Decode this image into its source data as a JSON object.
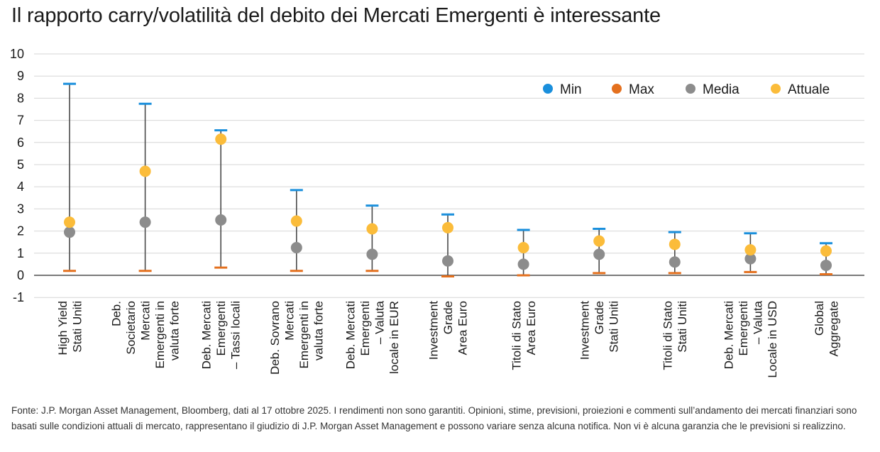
{
  "title": "Il rapporto carry/volatilità del debito dei Mercati Emergenti è interessante",
  "source": "Fonte: J.P. Morgan Asset Management, Bloomberg, dati al 17 ottobre 2025. I rendimenti non sono garantiti. Opinioni, stime, previsioni, proiezioni e commenti sull’andamento dei mercati finanziari sono basati sulle condizioni attuali di mercato, rappresentano il giudizio di J.P. Morgan Asset Management e possono variare senza alcuna notifica. Non vi è alcuna garanzia che le previsioni si realizzino.",
  "chart_data": {
    "type": "scatter",
    "title": "Il rapporto carry/volatilità del debito dei Mercati Emergenti è interessante",
    "ylim": [
      -1,
      10
    ],
    "yticks": [
      -1,
      0,
      1,
      2,
      3,
      4,
      5,
      6,
      7,
      8,
      9,
      10
    ],
    "grid": true,
    "legend_position": "top-right",
    "legend": [
      "Min",
      "Max",
      "Media",
      "Attuale"
    ],
    "colors": {
      "Min": "#1a8fdc",
      "Max": "#e4701e",
      "Media": "#8c8c8c",
      "Attuale": "#fbbc3a",
      "line": "#4a4a4a",
      "grid": "#d6d6d6"
    },
    "categories": [
      [
        "High Yield",
        "Stati Uniti"
      ],
      [
        "Deb.",
        "Societario",
        "Mercati",
        "Emergenti in",
        "valuta forte"
      ],
      [
        "Deb. Mercati",
        "Emergenti",
        "– Tassi locali"
      ],
      [
        "Deb. Sovrano",
        "Mercati",
        "Emergenti in",
        "valuta forte"
      ],
      [
        "Deb. Mercati",
        "Emergenti",
        "– Valuta",
        "locale in EUR"
      ],
      [
        "Investment",
        "Grade",
        "Area Euro"
      ],
      [
        "Titoli di Stato",
        "Area Euro"
      ],
      [
        "Investment",
        "Grade",
        "Stati Uniti"
      ],
      [
        "Titoli di Stato",
        "Stati Uniti"
      ],
      [
        "Deb. Mercati",
        "Emergenti",
        "– Valuta",
        "Locale in USD"
      ],
      [
        "Global",
        "Aggregate"
      ]
    ],
    "series": [
      {
        "name": "Min",
        "values": [
          8.65,
          7.75,
          6.55,
          3.85,
          3.15,
          2.75,
          2.05,
          2.1,
          1.95,
          1.9,
          1.45
        ]
      },
      {
        "name": "Max",
        "values": [
          0.2,
          0.2,
          0.35,
          0.2,
          0.2,
          -0.05,
          0.0,
          0.1,
          0.1,
          0.15,
          0.05
        ]
      },
      {
        "name": "Media",
        "values": [
          1.95,
          2.4,
          2.5,
          1.25,
          0.95,
          0.65,
          0.5,
          0.95,
          0.6,
          0.75,
          0.45
        ]
      },
      {
        "name": "Attuale",
        "values": [
          2.4,
          4.7,
          6.15,
          2.45,
          2.1,
          2.15,
          1.25,
          1.55,
          1.4,
          1.15,
          1.1
        ]
      }
    ]
  }
}
